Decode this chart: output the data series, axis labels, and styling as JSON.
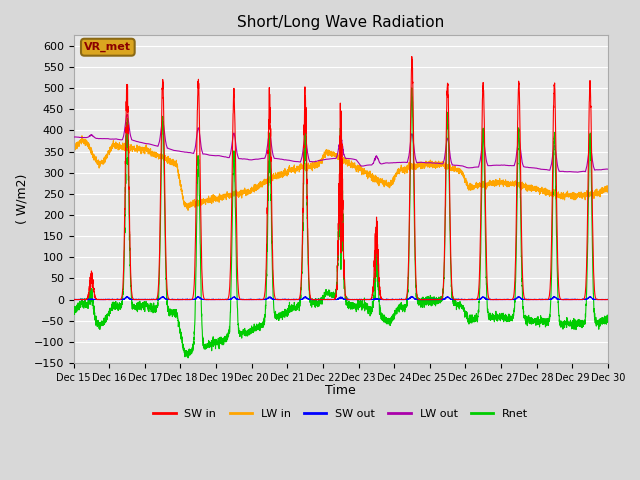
{
  "title": "Short/Long Wave Radiation",
  "xlabel": "Time",
  "ylabel": "( W/m2)",
  "ylim": [
    -150,
    625
  ],
  "yticks": [
    -150,
    -100,
    -50,
    0,
    50,
    100,
    150,
    200,
    250,
    300,
    350,
    400,
    450,
    500,
    550,
    600
  ],
  "start_day": 15,
  "end_day": 30,
  "n_days": 15,
  "colors": {
    "SW_in": "#FF0000",
    "LW_in": "#FFA500",
    "SW_out": "#0000FF",
    "LW_out": "#AA00AA",
    "Rnet": "#00CC00"
  },
  "annotation_label": "VR_met",
  "annotation_color": "#DAA520",
  "annotation_text_color": "#8B0000",
  "annotation_edge_color": "#8B6914",
  "background_color": "#D8D8D8",
  "plot_bg": "#E8E8E8",
  "grid_color": "#FFFFFF",
  "linewidth": 0.8,
  "figsize": [
    6.4,
    4.8
  ],
  "dpi": 100
}
